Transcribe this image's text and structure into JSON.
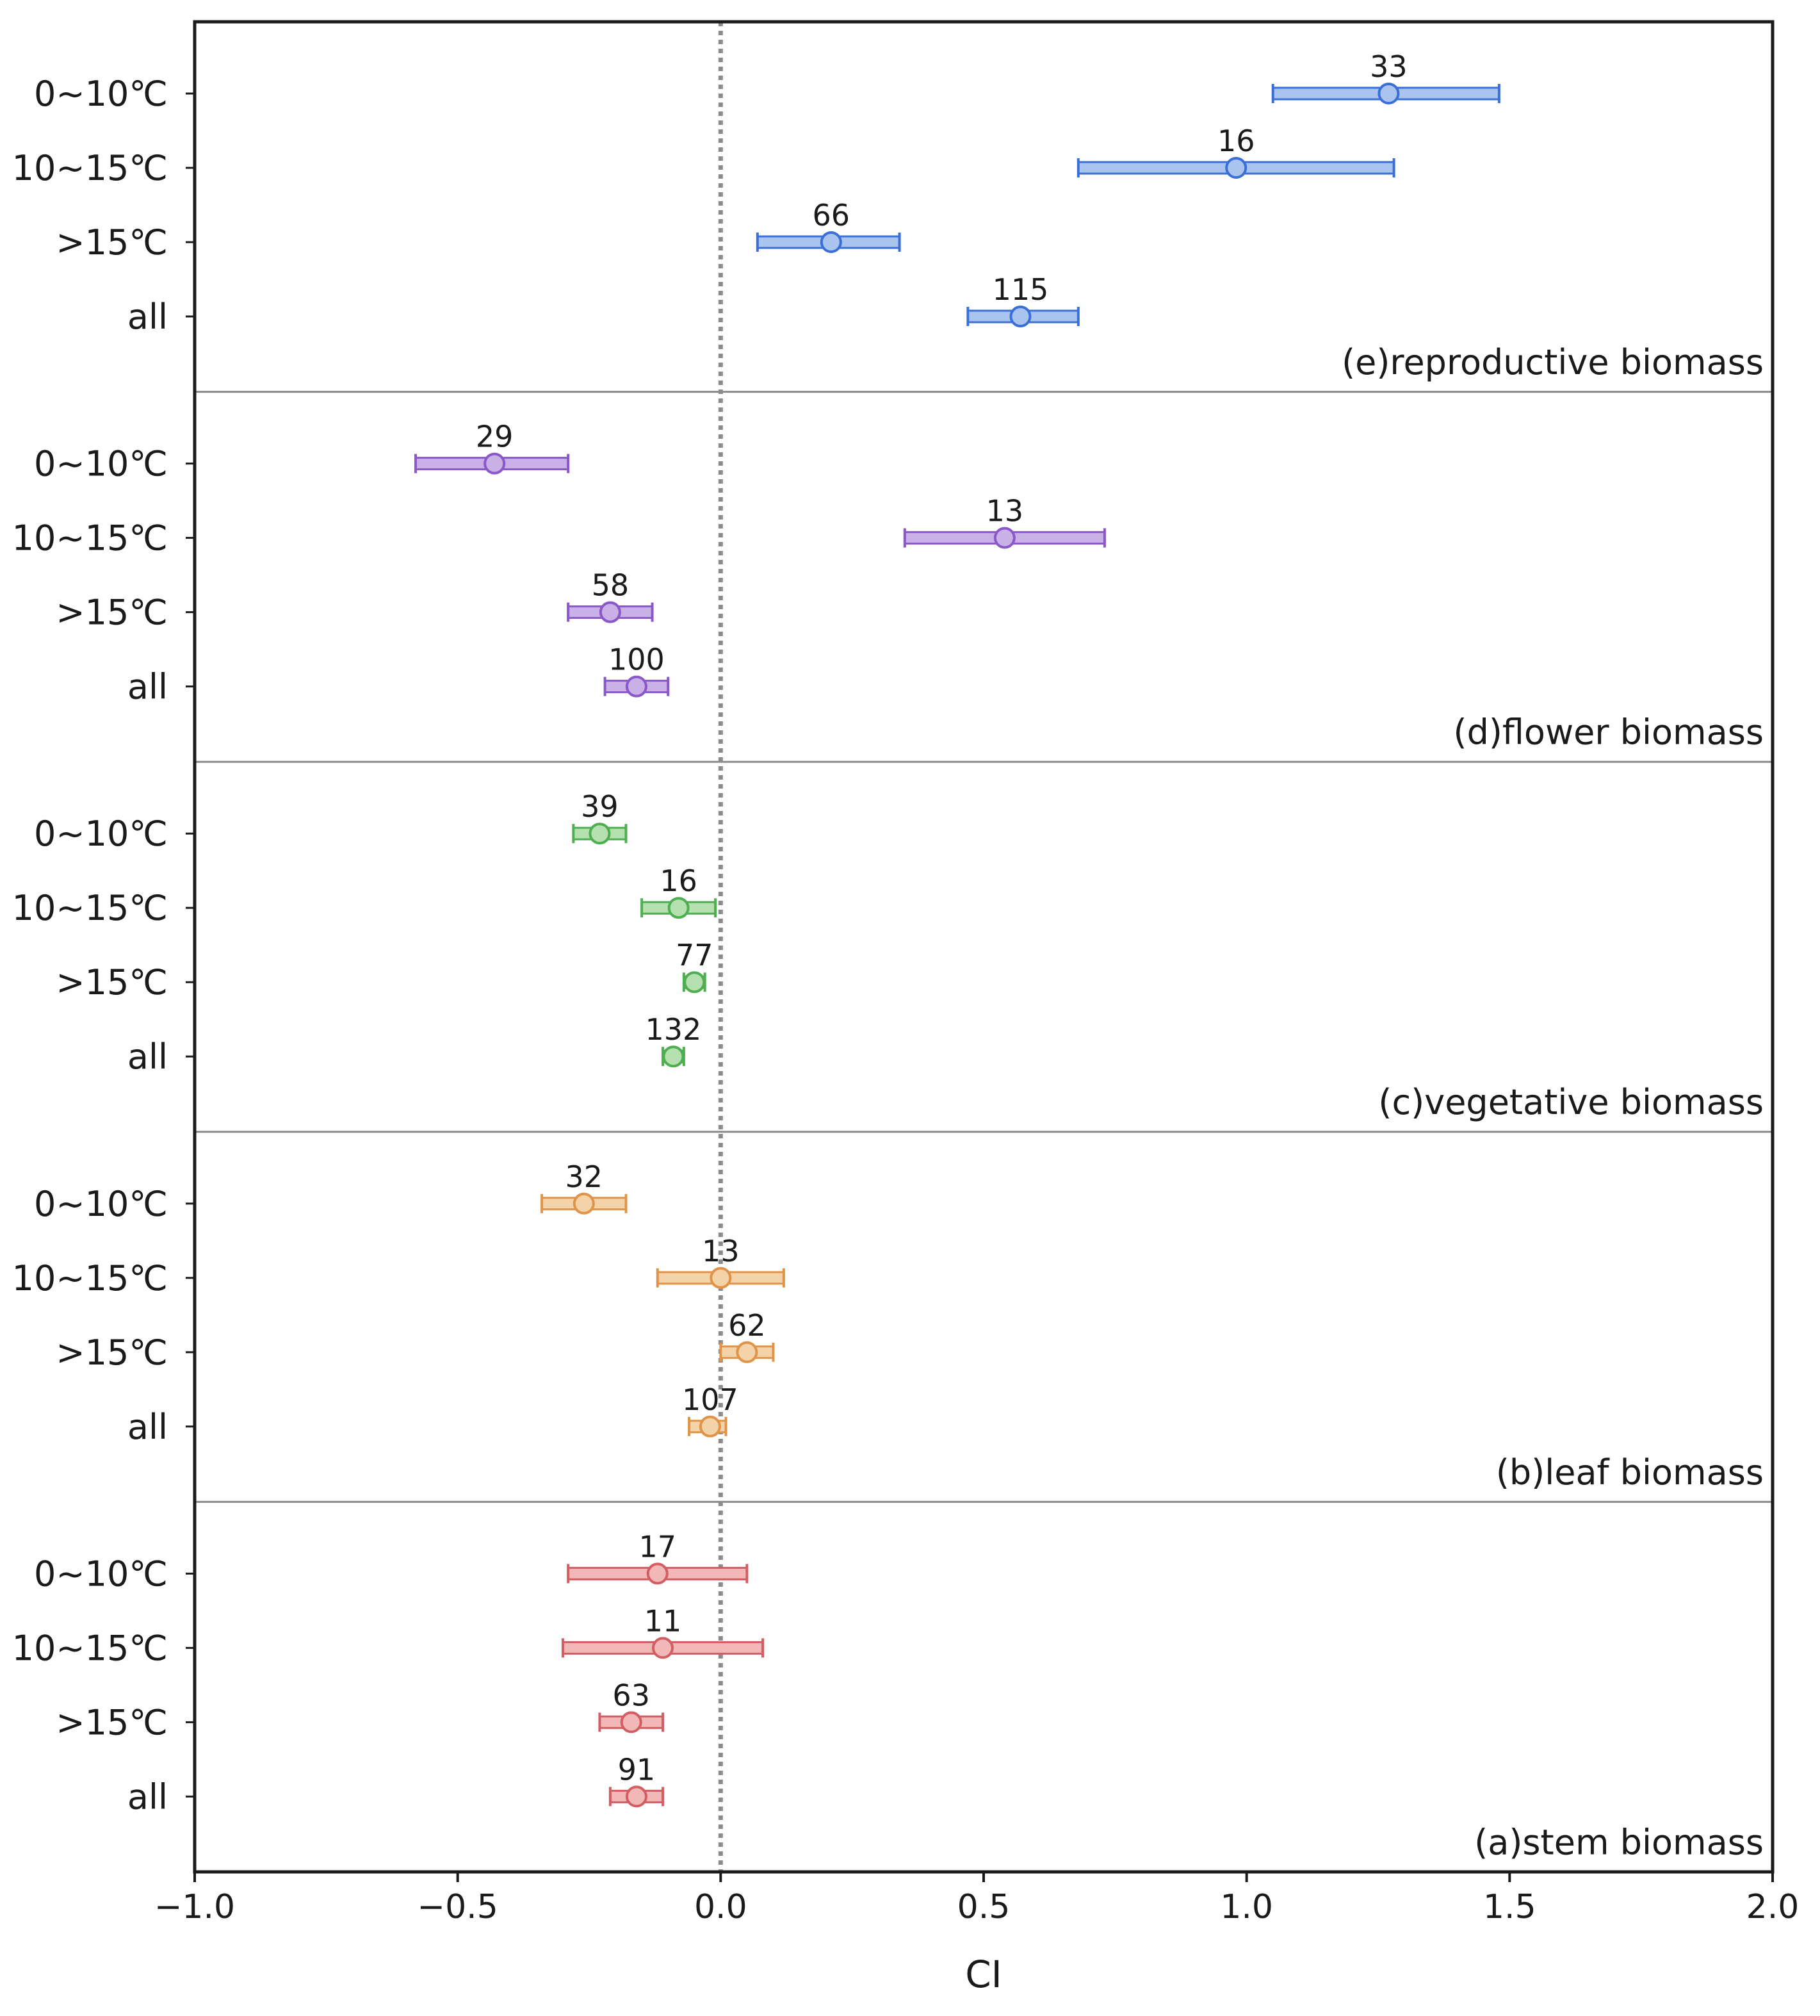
{
  "chart_data": {
    "type": "forest",
    "xlabel": "CI",
    "xlim": [
      -1.0,
      2.0
    ],
    "xticks": [
      -1.0,
      -0.5,
      0.0,
      0.5,
      1.0,
      1.5,
      2.0
    ],
    "xtick_labels": [
      "−1.0",
      "−0.5",
      "0.0",
      "0.5",
      "1.0",
      "1.5",
      "2.0"
    ],
    "reference_line": 0.0,
    "categories": [
      "0~10℃",
      "10~15℃",
      ">15℃",
      "all"
    ],
    "panels": [
      {
        "title": "(e)reproductive biomass",
        "color": "#3a6fd8",
        "fill": "#a9c4ee",
        "rows": [
          {
            "category": "0~10℃",
            "mean": 1.27,
            "lower": 1.05,
            "upper": 1.48,
            "n": "33"
          },
          {
            "category": "10~15℃",
            "mean": 0.98,
            "lower": 0.68,
            "upper": 1.28,
            "n": "16"
          },
          {
            "category": ">15℃",
            "mean": 0.21,
            "lower": 0.07,
            "upper": 0.34,
            "n": "66"
          },
          {
            "category": "all",
            "mean": 0.57,
            "lower": 0.47,
            "upper": 0.68,
            "n": "115"
          }
        ]
      },
      {
        "title": "(d)flower biomass",
        "color": "#8a58c8",
        "fill": "#c9b1e8",
        "rows": [
          {
            "category": "0~10℃",
            "mean": -0.43,
            "lower": -0.58,
            "upper": -0.29,
            "n": "29"
          },
          {
            "category": "10~15℃",
            "mean": 0.54,
            "lower": 0.35,
            "upper": 0.73,
            "n": "13"
          },
          {
            "category": ">15℃",
            "mean": -0.21,
            "lower": -0.29,
            "upper": -0.13,
            "n": "58"
          },
          {
            "category": "all",
            "mean": -0.16,
            "lower": -0.22,
            "upper": -0.1,
            "n": "100"
          }
        ]
      },
      {
        "title": "(c)vegetative biomass",
        "color": "#4fae4f",
        "fill": "#b5e0b0",
        "rows": [
          {
            "category": "0~10℃",
            "mean": -0.23,
            "lower": -0.28,
            "upper": -0.18,
            "n": "39"
          },
          {
            "category": "10~15℃",
            "mean": -0.08,
            "lower": -0.15,
            "upper": -0.01,
            "n": "16"
          },
          {
            "category": ">15℃",
            "mean": -0.05,
            "lower": -0.07,
            "upper": -0.03,
            "n": "77"
          },
          {
            "category": "all",
            "mean": -0.09,
            "lower": -0.11,
            "upper": -0.07,
            "n": "132"
          }
        ]
      },
      {
        "title": "(b)leaf biomass",
        "color": "#e0944a",
        "fill": "#f5d3a9",
        "rows": [
          {
            "category": "0~10℃",
            "mean": -0.26,
            "lower": -0.34,
            "upper": -0.18,
            "n": "32"
          },
          {
            "category": "10~15℃",
            "mean": 0.0,
            "lower": -0.12,
            "upper": 0.12,
            "n": "13"
          },
          {
            "category": ">15℃",
            "mean": 0.05,
            "lower": 0.0,
            "upper": 0.1,
            "n": "62"
          },
          {
            "category": "all",
            "mean": -0.02,
            "lower": -0.06,
            "upper": 0.01,
            "n": "107"
          }
        ]
      },
      {
        "title": "(a)stem biomass",
        "color": "#d25e63",
        "fill": "#f2b8b8",
        "rows": [
          {
            "category": "0~10℃",
            "mean": -0.12,
            "lower": -0.29,
            "upper": 0.05,
            "n": "17"
          },
          {
            "category": "10~15℃",
            "mean": -0.11,
            "lower": -0.3,
            "upper": 0.08,
            "n": "11"
          },
          {
            "category": ">15℃",
            "mean": -0.17,
            "lower": -0.23,
            "upper": -0.11,
            "n": "63"
          },
          {
            "category": "all",
            "mean": -0.16,
            "lower": -0.21,
            "upper": -0.11,
            "n": "91"
          }
        ]
      }
    ]
  }
}
